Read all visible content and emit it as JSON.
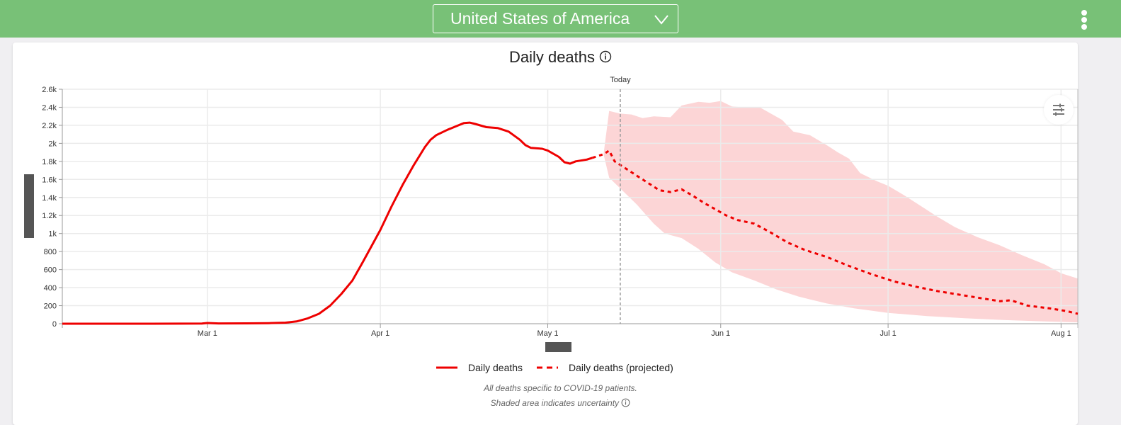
{
  "header": {
    "location_select": {
      "value": "United States of America",
      "icon": "chevron-down-icon"
    },
    "more_menu_icon": "more-vertical-icon",
    "colors": {
      "bar": "#78c177",
      "text": "#ffffff"
    }
  },
  "card": {
    "title": "Daily deaths",
    "title_icon": "info-icon",
    "filter_icon": "sliders-icon",
    "notes": [
      "All deaths specific to COVID-19 patients.",
      "Shaded area indicates uncertainty"
    ],
    "note_icon": "info-icon"
  },
  "chart_data": {
    "type": "line",
    "title": "Daily deaths",
    "xlabel": "",
    "ylabel": "",
    "x_type": "date",
    "xlim": [
      "2020-02-04",
      "2020-08-04"
    ],
    "ylim": [
      0,
      2600
    ],
    "yticks": [
      0,
      200,
      400,
      600,
      800,
      1000,
      1200,
      1400,
      1600,
      1800,
      2000,
      2200,
      2400,
      2600
    ],
    "ytick_labels": [
      "0",
      "200",
      "400",
      "600",
      "800",
      "1k",
      "1.2k",
      "1.4k",
      "1.6k",
      "1.8k",
      "2k",
      "2.2k",
      "2.4k",
      "2.6k"
    ],
    "xticks": [
      "2020-03-01",
      "2020-04-01",
      "2020-05-01",
      "2020-06-01",
      "2020-07-01",
      "2020-08-01"
    ],
    "xtick_labels": [
      "Mar 1",
      "Apr 1",
      "May 1",
      "Jun 1",
      "Jul 1",
      "Aug 1"
    ],
    "grid": true,
    "legend_position": "bottom-center",
    "annotations": [
      {
        "type": "vline",
        "x": "2020-05-14",
        "label": "Today",
        "style": "dashed"
      }
    ],
    "colors": {
      "line": "#ee0000",
      "band": "#fcd5d6",
      "today": "#999999"
    },
    "series": [
      {
        "name": "Daily deaths",
        "style": "solid",
        "points": [
          [
            "2020-02-04",
            0
          ],
          [
            "2020-02-20",
            0
          ],
          [
            "2020-02-29",
            2
          ],
          [
            "2020-03-01",
            8
          ],
          [
            "2020-03-03",
            3
          ],
          [
            "2020-03-08",
            4
          ],
          [
            "2020-03-12",
            6
          ],
          [
            "2020-03-15",
            12
          ],
          [
            "2020-03-17",
            25
          ],
          [
            "2020-03-19",
            60
          ],
          [
            "2020-03-21",
            110
          ],
          [
            "2020-03-23",
            200
          ],
          [
            "2020-03-25",
            330
          ],
          [
            "2020-03-27",
            480
          ],
          [
            "2020-03-29",
            700
          ],
          [
            "2020-04-01",
            1040
          ],
          [
            "2020-04-03",
            1300
          ],
          [
            "2020-04-05",
            1540
          ],
          [
            "2020-04-07",
            1760
          ],
          [
            "2020-04-09",
            1960
          ],
          [
            "2020-04-10",
            2040
          ],
          [
            "2020-04-11",
            2090
          ],
          [
            "2020-04-13",
            2150
          ],
          [
            "2020-04-15",
            2200
          ],
          [
            "2020-04-16",
            2225
          ],
          [
            "2020-04-17",
            2230
          ],
          [
            "2020-04-18",
            2215
          ],
          [
            "2020-04-20",
            2180
          ],
          [
            "2020-04-22",
            2170
          ],
          [
            "2020-04-24",
            2130
          ],
          [
            "2020-04-26",
            2040
          ],
          [
            "2020-04-27",
            1980
          ],
          [
            "2020-04-28",
            1950
          ],
          [
            "2020-04-30",
            1940
          ],
          [
            "2020-05-01",
            1920
          ],
          [
            "2020-05-03",
            1850
          ],
          [
            "2020-05-04",
            1790
          ],
          [
            "2020-05-05",
            1775
          ],
          [
            "2020-05-06",
            1800
          ],
          [
            "2020-05-08",
            1820
          ],
          [
            "2020-05-09",
            1840
          ]
        ]
      },
      {
        "name": "Daily deaths (projected)",
        "style": "dashed",
        "points": [
          [
            "2020-05-09",
            1840
          ],
          [
            "2020-05-11",
            1880
          ],
          [
            "2020-05-12",
            1920
          ],
          [
            "2020-05-13",
            1800
          ],
          [
            "2020-05-15",
            1720
          ],
          [
            "2020-05-17",
            1640
          ],
          [
            "2020-05-19",
            1560
          ],
          [
            "2020-05-21",
            1480
          ],
          [
            "2020-05-23",
            1460
          ],
          [
            "2020-05-25",
            1490
          ],
          [
            "2020-05-27",
            1420
          ],
          [
            "2020-05-29",
            1340
          ],
          [
            "2020-05-31",
            1270
          ],
          [
            "2020-06-02",
            1200
          ],
          [
            "2020-06-04",
            1150
          ],
          [
            "2020-06-07",
            1110
          ],
          [
            "2020-06-10",
            1010
          ],
          [
            "2020-06-13",
            900
          ],
          [
            "2020-06-16",
            820
          ],
          [
            "2020-06-20",
            740
          ],
          [
            "2020-06-24",
            640
          ],
          [
            "2020-06-28",
            550
          ],
          [
            "2020-07-02",
            470
          ],
          [
            "2020-07-06",
            410
          ],
          [
            "2020-07-10",
            360
          ],
          [
            "2020-07-14",
            320
          ],
          [
            "2020-07-18",
            280
          ],
          [
            "2020-07-21",
            250
          ],
          [
            "2020-07-23",
            260
          ],
          [
            "2020-07-26",
            200
          ],
          [
            "2020-07-30",
            170
          ],
          [
            "2020-08-02",
            140
          ],
          [
            "2020-08-04",
            110
          ]
        ]
      }
    ],
    "uncertainty_band": {
      "name": "Uncertainty",
      "upper": [
        [
          "2020-05-11",
          1880
        ],
        [
          "2020-05-12",
          2360
        ],
        [
          "2020-05-14",
          2330
        ],
        [
          "2020-05-16",
          2320
        ],
        [
          "2020-05-18",
          2280
        ],
        [
          "2020-05-20",
          2300
        ],
        [
          "2020-05-23",
          2290
        ],
        [
          "2020-05-25",
          2420
        ],
        [
          "2020-05-28",
          2460
        ],
        [
          "2020-05-30",
          2450
        ],
        [
          "2020-06-01",
          2470
        ],
        [
          "2020-06-03",
          2410
        ],
        [
          "2020-06-05",
          2400
        ],
        [
          "2020-06-08",
          2400
        ],
        [
          "2020-06-10",
          2330
        ],
        [
          "2020-06-12",
          2260
        ],
        [
          "2020-06-14",
          2130
        ],
        [
          "2020-06-17",
          2090
        ],
        [
          "2020-06-20",
          1980
        ],
        [
          "2020-06-22",
          1900
        ],
        [
          "2020-06-24",
          1830
        ],
        [
          "2020-06-26",
          1670
        ],
        [
          "2020-06-29",
          1580
        ],
        [
          "2020-07-01",
          1530
        ],
        [
          "2020-07-04",
          1420
        ],
        [
          "2020-07-07",
          1300
        ],
        [
          "2020-07-10",
          1180
        ],
        [
          "2020-07-13",
          1070
        ],
        [
          "2020-07-17",
          960
        ],
        [
          "2020-07-21",
          870
        ],
        [
          "2020-07-25",
          760
        ],
        [
          "2020-07-29",
          660
        ],
        [
          "2020-08-01",
          560
        ],
        [
          "2020-08-04",
          500
        ]
      ],
      "lower": [
        [
          "2020-05-11",
          1880
        ],
        [
          "2020-05-12",
          1620
        ],
        [
          "2020-05-14",
          1500
        ],
        [
          "2020-05-17",
          1320
        ],
        [
          "2020-05-20",
          1110
        ],
        [
          "2020-05-22",
          1000
        ],
        [
          "2020-05-25",
          950
        ],
        [
          "2020-05-28",
          830
        ],
        [
          "2020-05-31",
          680
        ],
        [
          "2020-06-03",
          570
        ],
        [
          "2020-06-07",
          480
        ],
        [
          "2020-06-11",
          380
        ],
        [
          "2020-06-15",
          300
        ],
        [
          "2020-06-20",
          225
        ],
        [
          "2020-06-25",
          170
        ],
        [
          "2020-07-01",
          120
        ],
        [
          "2020-07-08",
          85
        ],
        [
          "2020-07-15",
          60
        ],
        [
          "2020-07-22",
          40
        ],
        [
          "2020-07-29",
          25
        ],
        [
          "2020-08-04",
          15
        ]
      ]
    },
    "legend": [
      {
        "label": "Daily deaths",
        "style": "solid"
      },
      {
        "label": "Daily deaths (projected)",
        "style": "dashed"
      }
    ]
  }
}
